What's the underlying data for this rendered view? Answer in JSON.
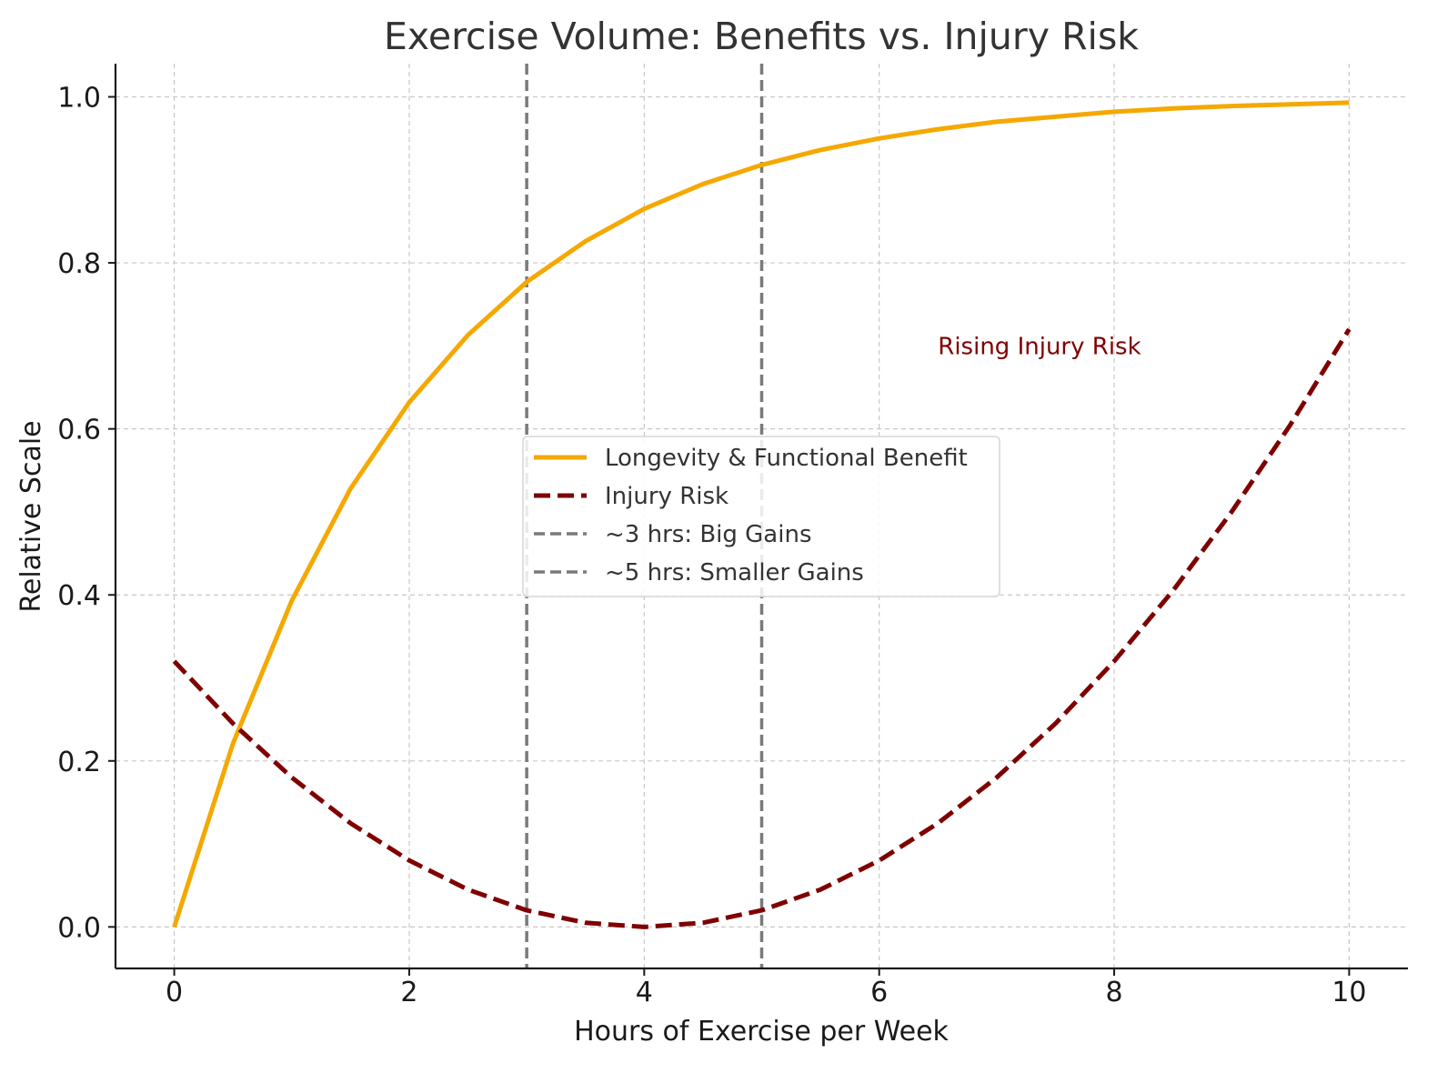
{
  "chart_data": {
    "type": "line",
    "title": "Exercise Volume: Benefits vs. Injury Risk",
    "xlabel": "Hours of Exercise per Week",
    "ylabel": "Relative Scale",
    "xlim": [
      -0.5,
      10.5
    ],
    "ylim": [
      -0.05,
      1.04
    ],
    "xticks": [
      0,
      2,
      4,
      6,
      8,
      10
    ],
    "xtick_labels": [
      "0",
      "2",
      "4",
      "6",
      "8",
      "10"
    ],
    "yticks": [
      0.0,
      0.2,
      0.4,
      0.6,
      0.8,
      1.0
    ],
    "ytick_labels": [
      "0.0",
      "0.2",
      "0.4",
      "0.6",
      "0.8",
      "1.0"
    ],
    "grid": true,
    "legend_position": "center",
    "series": [
      {
        "name": "Longevity & Functional Benefit",
        "color": "#f5a800",
        "style": "solid",
        "x": [
          0,
          0.5,
          1,
          1.5,
          2,
          2.5,
          3,
          3.5,
          4,
          4.5,
          5,
          5.5,
          6,
          6.5,
          7,
          7.5,
          8,
          8.5,
          9,
          9.5,
          10
        ],
        "y": [
          0.0,
          0.221,
          0.393,
          0.528,
          0.632,
          0.713,
          0.777,
          0.826,
          0.865,
          0.895,
          0.918,
          0.936,
          0.95,
          0.961,
          0.97,
          0.976,
          0.982,
          0.986,
          0.989,
          0.991,
          0.993
        ]
      },
      {
        "name": "Injury Risk",
        "color": "#7f0000",
        "style": "dashed",
        "x": [
          0,
          0.5,
          1,
          1.5,
          2,
          2.5,
          3,
          3.5,
          4,
          4.5,
          5,
          5.5,
          6,
          6.5,
          7,
          7.5,
          8,
          8.5,
          9,
          9.5,
          10
        ],
        "y": [
          0.32,
          0.245,
          0.18,
          0.125,
          0.08,
          0.045,
          0.02,
          0.005,
          0.0,
          0.005,
          0.02,
          0.045,
          0.08,
          0.125,
          0.18,
          0.245,
          0.32,
          0.405,
          0.5,
          0.605,
          0.72
        ]
      }
    ],
    "reference_lines": [
      {
        "name": "~3 hrs: Big Gains",
        "x": 3,
        "color": "#7a7a7a",
        "style": "dashed"
      },
      {
        "name": "~5 hrs: Smaller Gains",
        "x": 5,
        "color": "#7a7a7a",
        "style": "dashed"
      }
    ],
    "annotations": [
      {
        "text": "Rising Injury Risk",
        "x": 6.5,
        "y": 0.7,
        "color": "#7f0000"
      }
    ]
  }
}
